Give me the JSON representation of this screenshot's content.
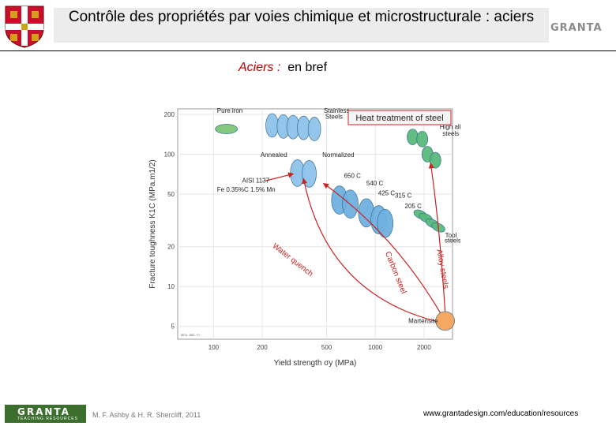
{
  "header": {
    "title": "Contrôle des propriétés par voies chimique et microstructurale : aciers",
    "logo_text": "GRANTA"
  },
  "subtitle": {
    "red": "Aciers :",
    "rest": "en bref"
  },
  "chart_data": {
    "type": "scatter",
    "title": "Heat treatment of steel",
    "xlabel": "Yield strength σy (MPa)",
    "ylabel": "Fracture toughness K1C (MPa.m1/2)",
    "xscale": "log",
    "yscale": "log",
    "xlim": [
      60,
      3000
    ],
    "ylim": [
      4,
      220
    ],
    "xticks": [
      100,
      200,
      500,
      1000,
      2000
    ],
    "yticks": [
      5,
      10,
      20,
      50,
      100,
      200
    ],
    "xtick_labels": [
      "100",
      "200",
      "500",
      "1000",
      "2000"
    ],
    "ytick_labels": [
      "5",
      "10",
      "20",
      "50",
      "100",
      "200"
    ],
    "source_note": "MFA, 88S, *0",
    "colors": {
      "pure_iron": "#7cc576",
      "stainless": "#8ec3ea",
      "carbon": "#6fb0df",
      "alloy": "#58b97a",
      "martensite": "#f4a35c",
      "arrow": "#cc2222"
    },
    "series": [
      {
        "name": "Pure iron",
        "points": [
          [
            120,
            155
          ]
        ]
      },
      {
        "name": "Stainless steels",
        "points": [
          [
            230,
            165
          ],
          [
            270,
            162
          ],
          [
            310,
            160
          ],
          [
            360,
            158
          ],
          [
            420,
            155
          ]
        ]
      },
      {
        "name": "Annealed",
        "points": [
          [
            330,
            72
          ]
        ]
      },
      {
        "name": "Normalized",
        "points": [
          [
            390,
            71
          ]
        ]
      },
      {
        "name": "Carbon steels (tempered)",
        "points": [
          [
            600,
            45
          ],
          [
            700,
            42
          ],
          [
            880,
            36
          ],
          [
            1050,
            32
          ],
          [
            1150,
            30
          ]
        ]
      },
      {
        "name": "High alloy steels",
        "points": [
          [
            1700,
            135
          ],
          [
            1950,
            130
          ],
          [
            2100,
            100
          ],
          [
            2350,
            90
          ]
        ]
      },
      {
        "name": "Tool steels",
        "points": [
          [
            1900,
            35
          ],
          [
            2050,
            33
          ],
          [
            2250,
            30
          ],
          [
            2450,
            28
          ]
        ]
      },
      {
        "name": "Martensite",
        "points": [
          [
            2700,
            5.5
          ]
        ]
      }
    ],
    "annotations": [
      {
        "text": "Pure iron",
        "x": 105,
        "y": 205
      },
      {
        "text": "Stainless",
        "x": 480,
        "y": 205
      },
      {
        "text": "Steels",
        "x": 490,
        "y": 185
      },
      {
        "text": "Annealed",
        "x": 195,
        "y": 95
      },
      {
        "text": "Normalized",
        "x": 470,
        "y": 95
      },
      {
        "text": "AISI 1137",
        "x": 150,
        "y": 61
      },
      {
        "text": "Fe 0.35%C 1.5% Mn",
        "x": 105,
        "y": 52
      },
      {
        "text": "650 C",
        "x": 640,
        "y": 66
      },
      {
        "text": "540 C",
        "x": 880,
        "y": 58
      },
      {
        "text": "425 C",
        "x": 1040,
        "y": 49
      },
      {
        "text": "315 C",
        "x": 1320,
        "y": 47
      },
      {
        "text": "205 C",
        "x": 1520,
        "y": 39
      },
      {
        "text": "High alloy",
        "x": 2500,
        "y": 155
      },
      {
        "text": "steels",
        "x": 2600,
        "y": 138
      },
      {
        "text": "Tool",
        "x": 2700,
        "y": 23.5
      },
      {
        "text": "steels",
        "x": 2680,
        "y": 21.5
      },
      {
        "text": "Martensite",
        "x": 1600,
        "y": 5.3
      }
    ],
    "arrow_labels": [
      "Water quench",
      "Carbon steel",
      "Alloy steels"
    ]
  },
  "footer": {
    "logo_text": "GRANTA",
    "logo_sub": "TEACHING RESOURCES",
    "credit": "M. F. Ashby & H. R. Shercliff, 2011",
    "url": "www.grantadesign.com/education/resources"
  }
}
